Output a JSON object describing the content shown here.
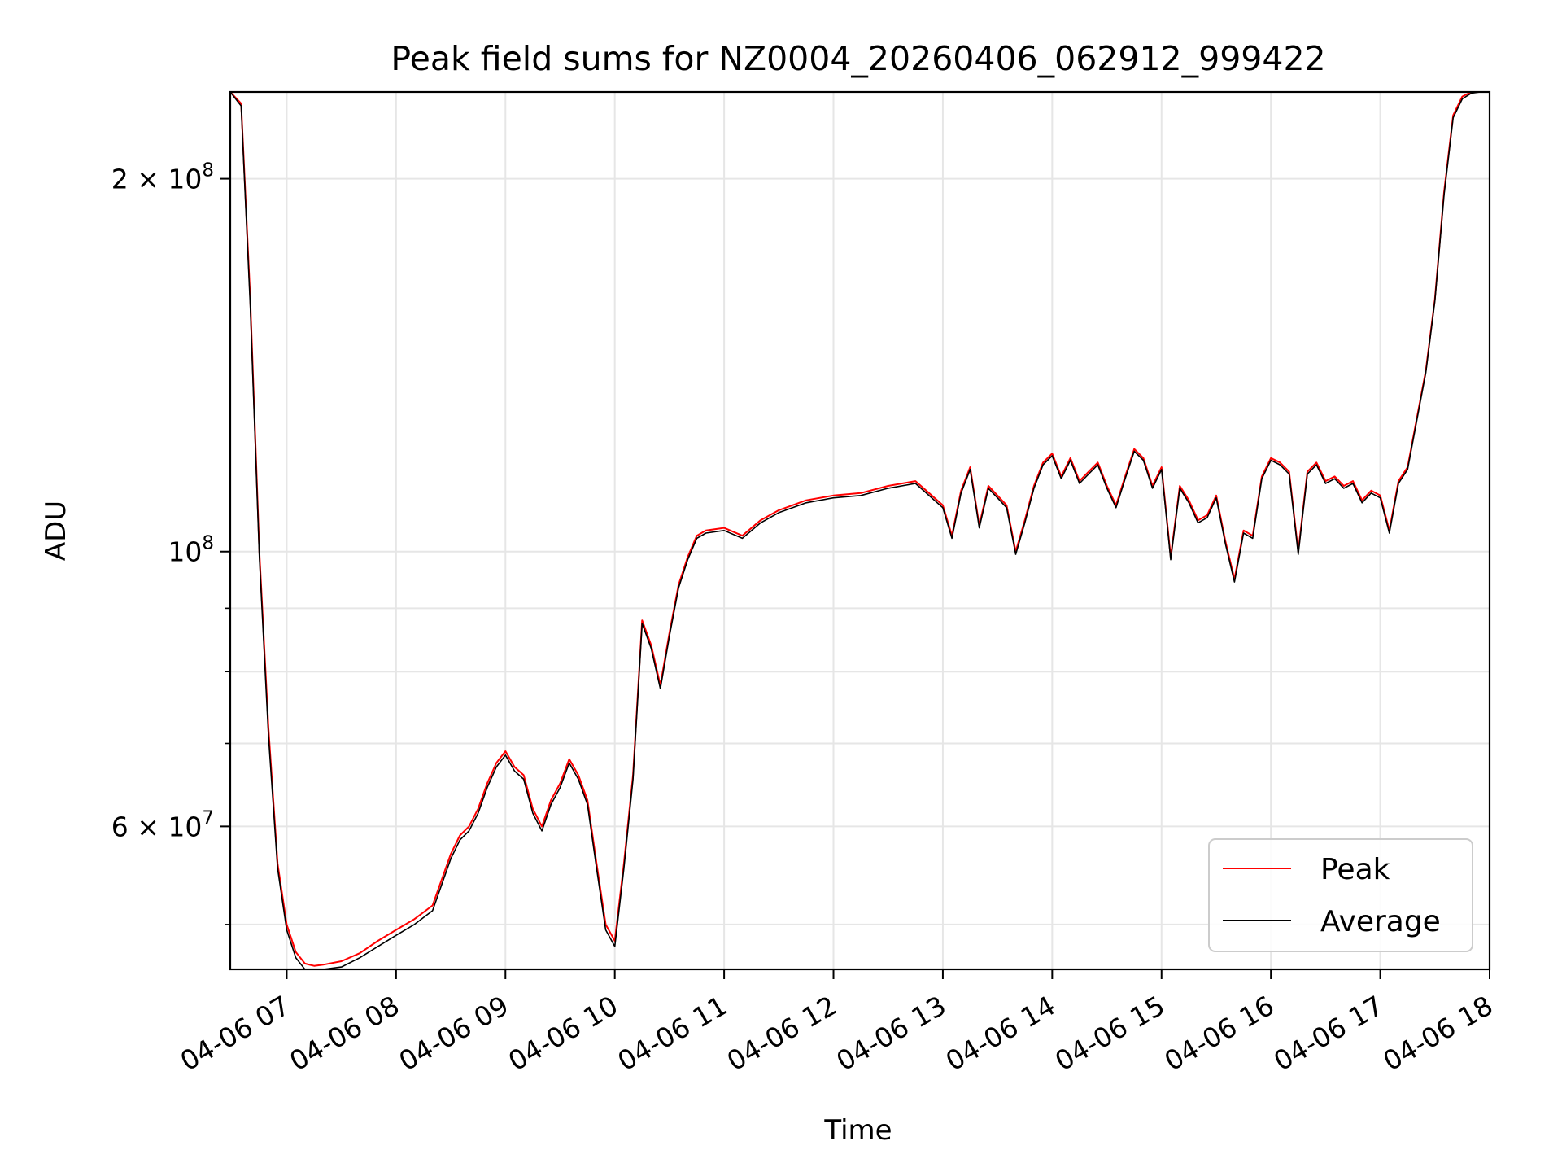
{
  "chart_data": {
    "type": "line",
    "title": "Peak field sums for NZ0004_20260406_062912_999422",
    "xlabel": "Time",
    "ylabel": "ADU",
    "x_scale": "time",
    "y_scale": "log",
    "xlim": [
      "2026-04-06 06:29",
      "2026-04-06 18:00"
    ],
    "ylim": [
      46000000,
      235000000
    ],
    "grid": true,
    "legend_position": "lower right",
    "x_tick_labels": [
      "04-06 07",
      "04-06 08",
      "04-06 09",
      "04-06 10",
      "04-06 11",
      "04-06 12",
      "04-06 13",
      "04-06 14",
      "04-06 15",
      "04-06 16",
      "04-06 17",
      "04-06 18"
    ],
    "x_tick_values": [
      "2026-04-06 07:00",
      "2026-04-06 08:00",
      "2026-04-06 09:00",
      "2026-04-06 10:00",
      "2026-04-06 11:00",
      "2026-04-06 12:00",
      "2026-04-06 13:00",
      "2026-04-06 14:00",
      "2026-04-06 15:00",
      "2026-04-06 16:00",
      "2026-04-06 17:00",
      "2026-04-06 18:00"
    ],
    "y_major_ticks": [
      {
        "value": 200000000,
        "mantissa": "2",
        "exponent": "8"
      },
      {
        "value": 100000000,
        "mantissa": "",
        "exponent": "8"
      },
      {
        "value": 60000000,
        "mantissa": "6",
        "exponent": "7"
      }
    ],
    "y_minor_ticks": [
      50000000,
      70000000,
      80000000,
      90000000
    ],
    "times": [
      "06:29",
      "06:35",
      "06:40",
      "06:45",
      "06:50",
      "06:55",
      "07:00",
      "07:05",
      "07:10",
      "07:15",
      "07:20",
      "07:30",
      "07:40",
      "07:50",
      "08:00",
      "08:10",
      "08:20",
      "08:30",
      "08:35",
      "08:40",
      "08:45",
      "08:50",
      "08:55",
      "09:00",
      "09:05",
      "09:10",
      "09:15",
      "09:20",
      "09:25",
      "09:30",
      "09:35",
      "09:40",
      "09:45",
      "09:50",
      "09:55",
      "10:00",
      "10:05",
      "10:10",
      "10:15",
      "10:20",
      "10:25",
      "10:30",
      "10:35",
      "10:40",
      "10:45",
      "10:50",
      "11:00",
      "11:10",
      "11:20",
      "11:30",
      "11:45",
      "12:00",
      "12:15",
      "12:30",
      "12:45",
      "13:00",
      "13:05",
      "13:10",
      "13:15",
      "13:20",
      "13:25",
      "13:30",
      "13:35",
      "13:40",
      "13:45",
      "13:50",
      "13:55",
      "14:00",
      "14:05",
      "14:10",
      "14:15",
      "14:20",
      "14:25",
      "14:30",
      "14:35",
      "14:40",
      "14:45",
      "14:50",
      "14:55",
      "15:00",
      "15:05",
      "15:10",
      "15:15",
      "15:20",
      "15:25",
      "15:30",
      "15:35",
      "15:40",
      "15:45",
      "15:50",
      "15:55",
      "16:00",
      "16:05",
      "16:10",
      "16:15",
      "16:20",
      "16:25",
      "16:30",
      "16:35",
      "16:40",
      "16:45",
      "16:50",
      "16:55",
      "17:00",
      "17:05",
      "17:10",
      "17:15",
      "17:20",
      "17:25",
      "17:30",
      "17:35",
      "17:40",
      "17:45",
      "17:50",
      "17:55",
      "18:00"
    ],
    "series": [
      {
        "name": "Peak",
        "color": "#ff0000",
        "values": [
          235000000,
          230000000,
          160000000,
          100000000,
          72000000,
          56000000,
          50000000,
          47500000,
          46500000,
          46300000,
          46400000,
          46700000,
          47400000,
          48500000,
          49500000,
          50500000,
          51800000,
          57000000,
          59000000,
          60000000,
          62000000,
          65000000,
          67500000,
          69000000,
          67000000,
          66000000,
          62000000,
          60000000,
          63000000,
          65000000,
          68000000,
          66000000,
          63000000,
          56000000,
          50000000,
          48500000,
          56000000,
          66000000,
          88000000,
          84000000,
          78000000,
          86000000,
          94000000,
          99000000,
          103000000,
          104000000,
          104500000,
          103000000,
          106000000,
          108000000,
          110000000,
          111000000,
          111500000,
          113000000,
          114000000,
          109000000,
          103000000,
          112000000,
          117000000,
          105000000,
          113000000,
          111000000,
          109000000,
          100000000,
          106000000,
          113000000,
          118000000,
          120000000,
          115000000,
          119000000,
          114000000,
          116000000,
          118000000,
          113000000,
          109000000,
          115000000,
          121000000,
          119000000,
          113000000,
          117000000,
          99000000,
          113000000,
          110000000,
          106000000,
          107000000,
          111000000,
          102000000,
          95000000,
          104000000,
          103000000,
          115000000,
          119000000,
          118000000,
          116000000,
          100000000,
          116000000,
          118000000,
          114000000,
          115000000,
          113000000,
          114000000,
          110000000,
          112000000,
          111000000,
          104000000,
          114000000,
          117000000,
          128000000,
          140000000,
          160000000,
          195000000,
          225000000,
          233000000,
          235000000,
          235000000,
          235000000
        ]
      },
      {
        "name": "Average",
        "color": "#000000",
        "values": [
          235000000,
          229000000,
          158000000,
          99000000,
          71000000,
          55500000,
          49500000,
          47000000,
          46000000,
          45800000,
          45900000,
          46200000,
          47000000,
          48000000,
          49000000,
          50000000,
          51300000,
          56500000,
          58500000,
          59500000,
          61500000,
          64500000,
          67000000,
          68500000,
          66500000,
          65500000,
          61500000,
          59500000,
          62500000,
          64500000,
          67500000,
          65500000,
          62500000,
          55500000,
          49500000,
          48000000,
          55500000,
          65500000,
          87500000,
          83500000,
          77500000,
          85500000,
          93500000,
          98500000,
          102500000,
          103500000,
          104000000,
          102500000,
          105500000,
          107500000,
          109500000,
          110500000,
          111000000,
          112500000,
          113500000,
          108500000,
          102500000,
          111500000,
          116500000,
          104500000,
          112500000,
          110500000,
          108500000,
          99500000,
          105500000,
          112500000,
          117500000,
          119500000,
          114500000,
          118500000,
          113500000,
          115500000,
          117500000,
          112500000,
          108500000,
          114500000,
          120500000,
          118500000,
          112500000,
          116500000,
          98500000,
          112500000,
          109500000,
          105500000,
          106500000,
          110500000,
          101500000,
          94500000,
          103500000,
          102500000,
          114500000,
          118500000,
          117500000,
          115500000,
          99500000,
          115500000,
          117500000,
          113500000,
          114500000,
          112500000,
          113500000,
          109500000,
          111500000,
          110500000,
          103500000,
          113500000,
          116500000,
          127500000,
          139500000,
          159500000,
          194000000,
          224000000,
          232000000,
          234500000,
          235000000,
          235000000
        ]
      }
    ],
    "legend": [
      {
        "label": "Peak",
        "color": "#ff0000"
      },
      {
        "label": "Average",
        "color": "#000000"
      }
    ]
  }
}
